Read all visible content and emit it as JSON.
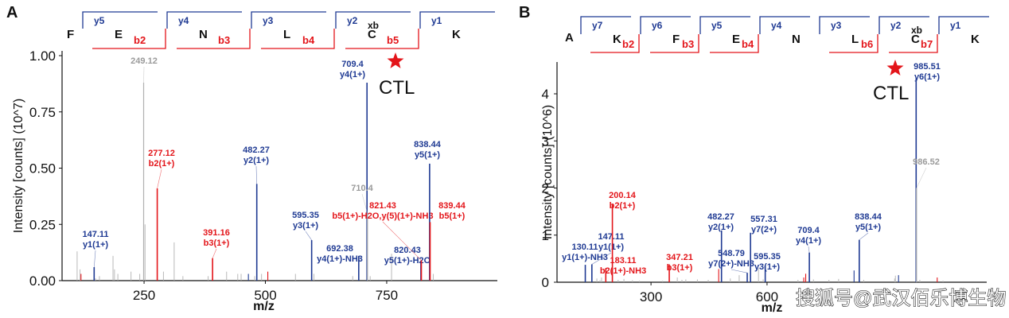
{
  "colors": {
    "y_ion": "#1f3a93",
    "b_ion": "#e3151a",
    "unassigned": "#b0b0b0",
    "axis": "#111111",
    "star": "#e3151a"
  },
  "watermark": "搜狐号@武汉佰乐博生物",
  "chart_data": [
    {
      "type": "bar",
      "panel": "A",
      "title": "",
      "xlabel": "m/z",
      "ylabel": "Intensity [counts] (10^7)",
      "xlim": [
        81,
        978
      ],
      "ylim": [
        0,
        1.0
      ],
      "xticks": [
        250,
        500,
        750
      ],
      "yticks": [
        0.0,
        0.25,
        0.5,
        0.75,
        1.0
      ],
      "ytick_labels": [
        "0.00",
        "0.25",
        "0.50",
        "0.75",
        "1.00"
      ],
      "grid": false,
      "annotation": {
        "star": true,
        "text": "CTL",
        "near_peak": 709.4
      },
      "sequence": {
        "n_term": "F",
        "residues": [
          {
            "aa": "E",
            "y": "y5",
            "b": "b2",
            "xb": ""
          },
          {
            "aa": "N",
            "y": "y4",
            "b": "b3",
            "xb": ""
          },
          {
            "aa": "L",
            "y": "y3",
            "b": "b4",
            "xb": ""
          },
          {
            "aa": "C",
            "y": "y2",
            "b": "b5",
            "xb": "xb"
          },
          {
            "aa": "K",
            "y": "y1",
            "b": "",
            "xb": ""
          }
        ]
      },
      "peaks": [
        {
          "mz": 147.11,
          "intensity": 0.06,
          "type": "y",
          "label": [
            "147.11",
            "y1(1+)"
          ]
        },
        {
          "mz": 249.12,
          "intensity": 0.88,
          "type": "gray",
          "label": [
            "249.12"
          ]
        },
        {
          "mz": 277.12,
          "intensity": 0.41,
          "type": "b",
          "label": [
            "277.12",
            "b2(1+)"
          ]
        },
        {
          "mz": 391.16,
          "intensity": 0.1,
          "type": "b",
          "label": [
            "391.16",
            "b3(1+)"
          ]
        },
        {
          "mz": 482.27,
          "intensity": 0.43,
          "type": "y",
          "label": [
            "482.27",
            "y2(1+)"
          ]
        },
        {
          "mz": 595.35,
          "intensity": 0.18,
          "type": "y",
          "label": [
            "595.35",
            "y3(1+)"
          ]
        },
        {
          "mz": 692.38,
          "intensity": 0.11,
          "type": "y",
          "label": [
            "692.38",
            "y4(1+)-NH3"
          ]
        },
        {
          "mz": 709.4,
          "intensity": 0.88,
          "type": "y",
          "label": [
            "709.4",
            "y4(1+)"
          ]
        },
        {
          "mz": 710.4,
          "intensity": 0.3,
          "type": "gray",
          "label": [
            "710.4"
          ]
        },
        {
          "mz": 820.43,
          "intensity": 0.08,
          "type": "y",
          "label": [
            "820.43",
            "y5(1+)-H2O"
          ]
        },
        {
          "mz": 821.43,
          "intensity": 0.09,
          "type": "b",
          "label": [
            "821.43",
            "b5(1+)-H2O,y(5)(1+)-NH3"
          ]
        },
        {
          "mz": 838.44,
          "intensity": 0.52,
          "type": "y",
          "label": [
            "838.44",
            "y5(1+)"
          ]
        },
        {
          "mz": 839.44,
          "intensity": 0.26,
          "type": "b",
          "label": [
            "839.44",
            "b5(1+)"
          ]
        }
      ],
      "minor_peaks": [
        {
          "mz": 112,
          "intensity": 0.13,
          "type": "gray"
        },
        {
          "mz": 118,
          "intensity": 0.05,
          "type": "gray"
        },
        {
          "mz": 120,
          "intensity": 0.03,
          "type": "b"
        },
        {
          "mz": 150,
          "intensity": 0.01,
          "type": "gray"
        },
        {
          "mz": 158,
          "intensity": 0.02,
          "type": "gray"
        },
        {
          "mz": 186,
          "intensity": 0.11,
          "type": "gray"
        },
        {
          "mz": 189,
          "intensity": 0.05,
          "type": "gray"
        },
        {
          "mz": 196,
          "intensity": 0.03,
          "type": "gray"
        },
        {
          "mz": 223,
          "intensity": 0.04,
          "type": "gray"
        },
        {
          "mz": 241,
          "intensity": 0.03,
          "type": "gray"
        },
        {
          "mz": 252,
          "intensity": 0.25,
          "type": "gray"
        },
        {
          "mz": 290,
          "intensity": 0.04,
          "type": "gray"
        },
        {
          "mz": 312,
          "intensity": 0.17,
          "type": "gray"
        },
        {
          "mz": 330,
          "intensity": 0.02,
          "type": "gray"
        },
        {
          "mz": 382,
          "intensity": 0.02,
          "type": "gray"
        },
        {
          "mz": 420,
          "intensity": 0.04,
          "type": "gray"
        },
        {
          "mz": 443,
          "intensity": 0.03,
          "type": "gray"
        },
        {
          "mz": 450,
          "intensity": 0.03,
          "type": "gray"
        },
        {
          "mz": 465,
          "intensity": 0.03,
          "type": "y"
        },
        {
          "mz": 478,
          "intensity": 0.02,
          "type": "gray"
        },
        {
          "mz": 492,
          "intensity": 0.03,
          "type": "gray"
        },
        {
          "mz": 505,
          "intensity": 0.04,
          "type": "b"
        },
        {
          "mz": 562,
          "intensity": 0.03,
          "type": "gray"
        },
        {
          "mz": 600,
          "intensity": 0.03,
          "type": "gray"
        },
        {
          "mz": 680,
          "intensity": 0.02,
          "type": "gray"
        },
        {
          "mz": 716,
          "intensity": 0.02,
          "type": "gray"
        },
        {
          "mz": 760,
          "intensity": 0.12,
          "type": "gray"
        },
        {
          "mz": 846,
          "intensity": 0.03,
          "type": "gray"
        }
      ]
    },
    {
      "type": "bar",
      "panel": "B",
      "title": "",
      "xlabel": "m/z",
      "ylabel": "Intensity [counts] (10^6)",
      "xlim": [
        57,
        1168
      ],
      "ylim": [
        0,
        4.68
      ],
      "xticks": [
        300,
        600
      ],
      "yticks": [
        0,
        1,
        2,
        3,
        4
      ],
      "ytick_labels": [
        "0",
        "1",
        "2",
        "3",
        "4"
      ],
      "grid": false,
      "annotation": {
        "star": true,
        "text": "CTL",
        "near_peak": 985.51
      },
      "sequence": {
        "n_term": "A",
        "residues": [
          {
            "aa": "K",
            "y": "y7",
            "b": "b2",
            "xb": ""
          },
          {
            "aa": "F",
            "y": "y6",
            "b": "b3",
            "xb": ""
          },
          {
            "aa": "E",
            "y": "y5",
            "b": "b4",
            "xb": ""
          },
          {
            "aa": "N",
            "y": "y4",
            "b": "",
            "xb": ""
          },
          {
            "aa": "L",
            "y": "y3",
            "b": "b6",
            "xb": ""
          },
          {
            "aa": "C",
            "y": "y2",
            "b": "b7",
            "xb": "xb"
          },
          {
            "aa": "K",
            "y": "y1",
            "b": "",
            "xb": ""
          }
        ]
      },
      "peaks": [
        {
          "mz": 130.11,
          "intensity": 0.37,
          "type": "y",
          "label": [
            "130.11",
            "y1(1+)-NH3"
          ]
        },
        {
          "mz": 147.11,
          "intensity": 0.38,
          "type": "y",
          "label": [
            "147.11",
            "y1(1+)"
          ]
        },
        {
          "mz": 183.11,
          "intensity": 0.3,
          "type": "b",
          "label": [
            "183.11",
            "b2(1+)-NH3"
          ]
        },
        {
          "mz": 200.14,
          "intensity": 1.65,
          "type": "b",
          "label": [
            "200.14",
            "b2(1+)"
          ]
        },
        {
          "mz": 347.21,
          "intensity": 0.38,
          "type": "b",
          "label": [
            "347.21",
            "b3(1+)"
          ]
        },
        {
          "mz": 482.27,
          "intensity": 1.1,
          "type": "y",
          "label": [
            "482.27",
            "y2(1+)"
          ]
        },
        {
          "mz": 548.79,
          "intensity": 0.2,
          "type": "y",
          "label": [
            "548.79",
            "y7(2+)-NH3"
          ]
        },
        {
          "mz": 557.31,
          "intensity": 1.05,
          "type": "y",
          "label": [
            "557.31",
            "y7(2+)"
          ]
        },
        {
          "mz": 595.35,
          "intensity": 0.35,
          "type": "y",
          "label": [
            "595.35",
            "y3(1+)"
          ]
        },
        {
          "mz": 709.4,
          "intensity": 0.63,
          "type": "y",
          "label": [
            "709.4",
            "y4(1+)"
          ]
        },
        {
          "mz": 838.44,
          "intensity": 0.9,
          "type": "y",
          "label": [
            "838.44",
            "y5(1+)"
          ]
        },
        {
          "mz": 985.51,
          "intensity": 4.33,
          "type": "y",
          "label": [
            "985.51",
            "y6(1+)"
          ]
        },
        {
          "mz": 986.52,
          "intensity": 2.0,
          "type": "gray",
          "label": [
            "986.52"
          ]
        }
      ],
      "minor_peaks": [
        {
          "mz": 160,
          "intensity": 0.08,
          "type": "gray"
        },
        {
          "mz": 168,
          "intensity": 0.04,
          "type": "gray"
        },
        {
          "mz": 172,
          "intensity": 0.1,
          "type": "gray"
        },
        {
          "mz": 215,
          "intensity": 0.05,
          "type": "gray"
        },
        {
          "mz": 230,
          "intensity": 0.07,
          "type": "gray"
        },
        {
          "mz": 252,
          "intensity": 0.04,
          "type": "gray"
        },
        {
          "mz": 270,
          "intensity": 0.03,
          "type": "gray"
        },
        {
          "mz": 330,
          "intensity": 0.03,
          "type": "gray"
        },
        {
          "mz": 368,
          "intensity": 0.1,
          "type": "gray"
        },
        {
          "mz": 380,
          "intensity": 0.05,
          "type": "gray"
        },
        {
          "mz": 390,
          "intensity": 0.06,
          "type": "gray"
        },
        {
          "mz": 420,
          "intensity": 0.06,
          "type": "gray"
        },
        {
          "mz": 448,
          "intensity": 0.05,
          "type": "gray"
        },
        {
          "mz": 475,
          "intensity": 0.28,
          "type": "b"
        },
        {
          "mz": 505,
          "intensity": 0.08,
          "type": "gray"
        },
        {
          "mz": 528,
          "intensity": 0.15,
          "type": "gray"
        },
        {
          "mz": 578,
          "intensity": 0.3,
          "type": "gray"
        },
        {
          "mz": 590,
          "intensity": 0.06,
          "type": "gray"
        },
        {
          "mz": 680,
          "intensity": 0.05,
          "type": "gray"
        },
        {
          "mz": 695,
          "intensity": 0.1,
          "type": "b"
        },
        {
          "mz": 700,
          "intensity": 0.18,
          "type": "b"
        },
        {
          "mz": 720,
          "intensity": 0.06,
          "type": "gray"
        },
        {
          "mz": 760,
          "intensity": 0.05,
          "type": "gray"
        },
        {
          "mz": 785,
          "intensity": 0.07,
          "type": "gray"
        },
        {
          "mz": 825,
          "intensity": 0.25,
          "type": "y"
        },
        {
          "mz": 850,
          "intensity": 0.05,
          "type": "gray"
        },
        {
          "mz": 930,
          "intensity": 0.08,
          "type": "gray"
        },
        {
          "mz": 932,
          "intensity": 0.14,
          "type": "gray"
        },
        {
          "mz": 940,
          "intensity": 0.15,
          "type": "y"
        },
        {
          "mz": 995,
          "intensity": 0.05,
          "type": "gray"
        },
        {
          "mz": 1040,
          "intensity": 0.1,
          "type": "b"
        },
        {
          "mz": 1055,
          "intensity": 0.03,
          "type": "gray"
        }
      ]
    }
  ]
}
